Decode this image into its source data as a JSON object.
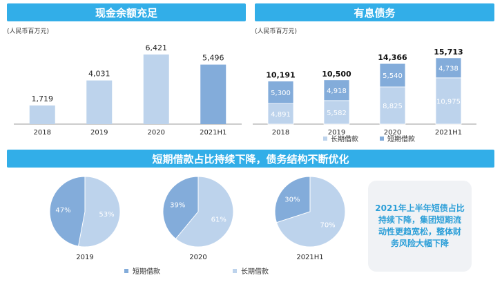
{
  "colors": {
    "header_bg": "#32aee8",
    "short_term": "#83acda",
    "long_term": "#bdd3ec",
    "cash_light": "#bdd3ec",
    "cash_dark": "#83acda",
    "note_text": "#2c9fd8"
  },
  "panels": {
    "cash": {
      "title": "现金余额充足",
      "unit": "(人民币百万元)"
    },
    "debt": {
      "title": "有息债务",
      "unit": "(人民币百万元)"
    },
    "ratio": {
      "title": "短期借款占比持续下降，债务结构不断优化"
    }
  },
  "note_text": "2021年上半年短债占比持续下降，集团短期流动性更趋宽松，整体财务风险大幅下降",
  "legend_bottom": {
    "short": "短期借款",
    "long": "长期借款"
  },
  "chart_data": [
    {
      "type": "bar",
      "title": "现金余额充足",
      "ylabel": "(人民币百万元)",
      "categories": [
        "2018",
        "2019",
        "2020",
        "2021H1"
      ],
      "values": [
        1719,
        4031,
        6421,
        5496
      ],
      "value_labels": [
        "1,719",
        "4,031",
        "6,421",
        "5,496"
      ],
      "ylim": [
        0,
        7000
      ]
    },
    {
      "type": "bar",
      "stacked": true,
      "title": "有息债务",
      "ylabel": "(人民币百万元)",
      "categories": [
        "2018",
        "2019",
        "2020",
        "2021H1"
      ],
      "series": [
        {
          "name": "长期借款",
          "values": [
            4891,
            5582,
            8825,
            10975
          ],
          "labels": [
            "4,891",
            "5,582",
            "8,825",
            "10,975"
          ]
        },
        {
          "name": "短期借款",
          "values": [
            5300,
            4918,
            5540,
            4738
          ],
          "labels": [
            "5,300",
            "4,918",
            "5,540",
            "4,738"
          ]
        }
      ],
      "totals": [
        10191,
        10500,
        14366,
        15713
      ],
      "total_labels": [
        "10,191",
        "10,500",
        "14,366",
        "15,713"
      ],
      "ylim": [
        0,
        17000
      ]
    },
    {
      "type": "pie",
      "title": "2019",
      "slices": [
        {
          "name": "短期借款",
          "value": 47,
          "label": "47%"
        },
        {
          "name": "长期借款",
          "value": 53,
          "label": "53%"
        }
      ]
    },
    {
      "type": "pie",
      "title": "2020",
      "slices": [
        {
          "name": "短期借款",
          "value": 39,
          "label": "39%"
        },
        {
          "name": "长期借款",
          "value": 61,
          "label": "61%"
        }
      ]
    },
    {
      "type": "pie",
      "title": "2021H1",
      "slices": [
        {
          "name": "短期借款",
          "value": 30,
          "label": "30%"
        },
        {
          "name": "长期借款",
          "value": 70,
          "label": "70%"
        }
      ]
    }
  ]
}
